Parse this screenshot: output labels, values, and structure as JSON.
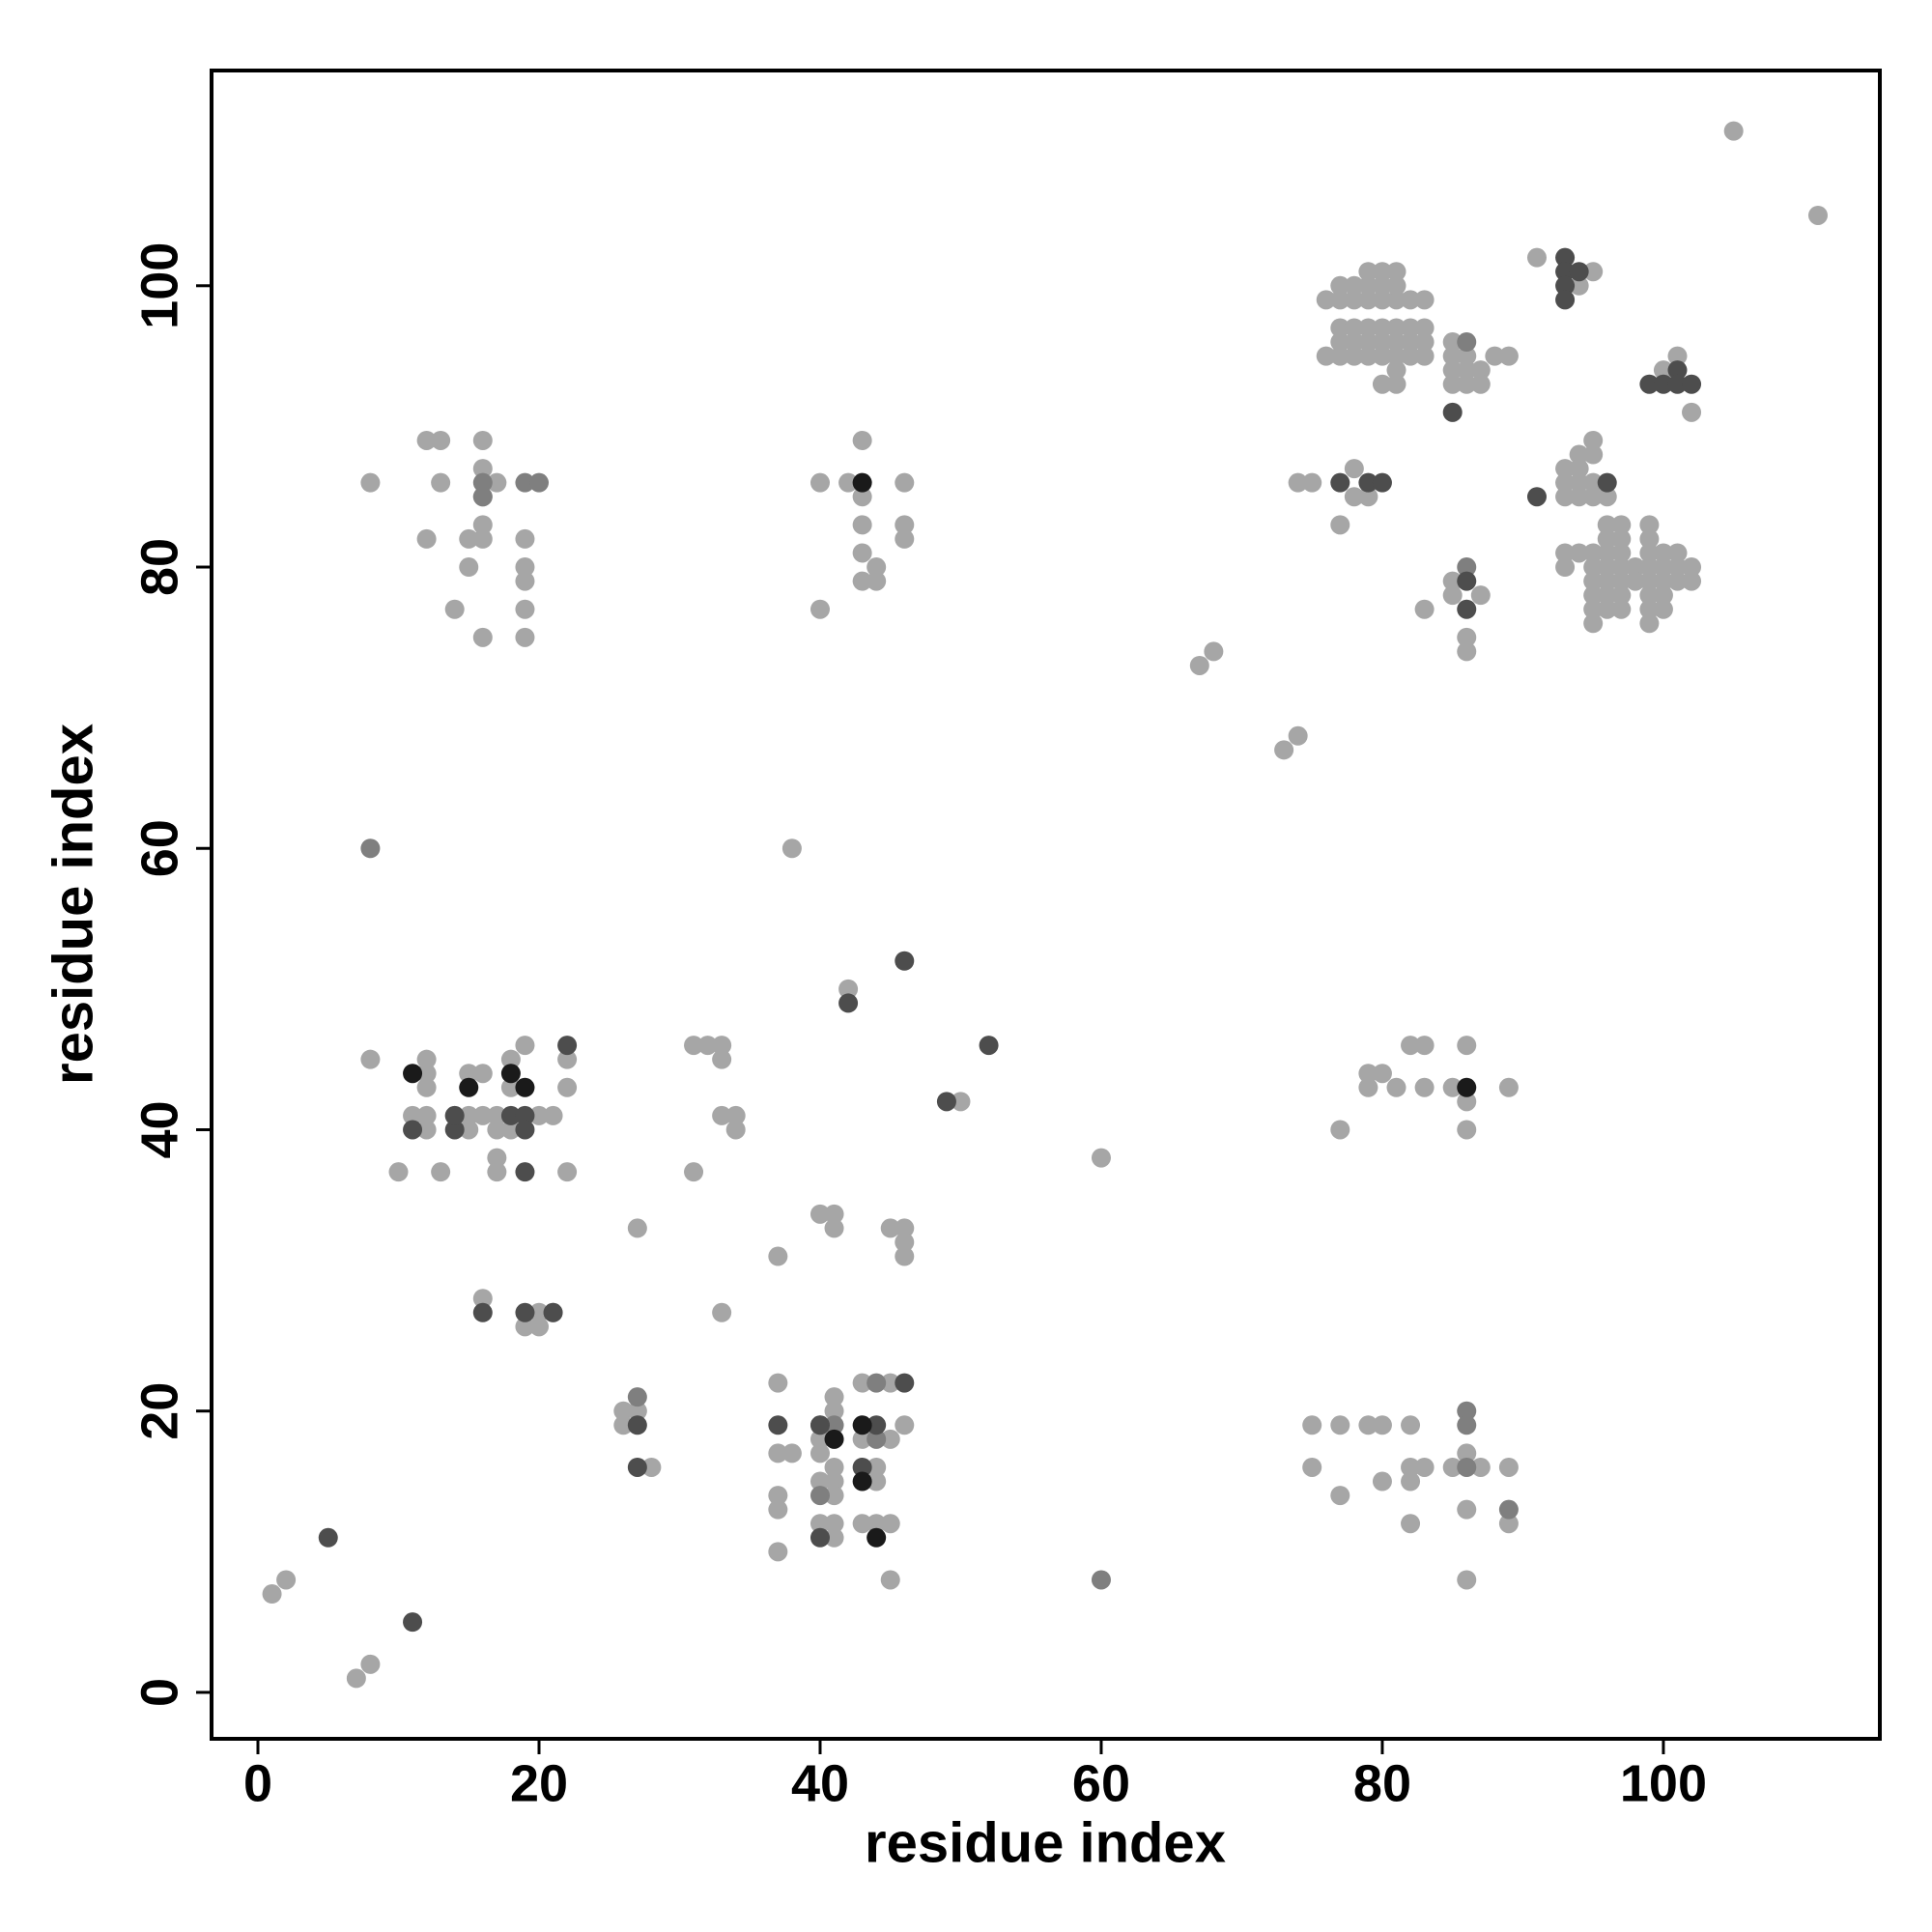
{
  "chart_data": {
    "type": "scatter",
    "xlabel": "residue index",
    "ylabel": "residue index",
    "xlim": [
      -3.3,
      115.4
    ],
    "ylim": [
      -3.3,
      115.3
    ],
    "xticks": [
      0,
      20,
      40,
      60,
      80,
      100
    ],
    "yticks": [
      0,
      20,
      40,
      60,
      80,
      100
    ],
    "grid": false,
    "series": [
      {
        "color": "#a6a6a6",
        "x": [
          1,
          2,
          7,
          8,
          67,
          68,
          73,
          74,
          105,
          111,
          37,
          37,
          38,
          37,
          37,
          37,
          40,
          40,
          40,
          41,
          41,
          41,
          41,
          41,
          41,
          40,
          41,
          43,
          43,
          43,
          44,
          44,
          44,
          45,
          45,
          45,
          46,
          45,
          26,
          26,
          27,
          28,
          27,
          33,
          37,
          31,
          40,
          41,
          41,
          45,
          46,
          46,
          46,
          31,
          32,
          33,
          33,
          33,
          34,
          34,
          38,
          60,
          42,
          50,
          8,
          10,
          11,
          12,
          12,
          12,
          12,
          12,
          13,
          14,
          15,
          15,
          15,
          16,
          16,
          17,
          17,
          17,
          17,
          18,
          18,
          18,
          19,
          20,
          21,
          22,
          22,
          22,
          16,
          19,
          20,
          20,
          8,
          12,
          13,
          13,
          12,
          15,
          15,
          14,
          16,
          16,
          16,
          16,
          16,
          17,
          16,
          19,
          19,
          19,
          19,
          19,
          40,
          40,
          42,
          43,
          43,
          43,
          43,
          43,
          44,
          44,
          46,
          46,
          46,
          75,
          75,
          77,
          77,
          79,
          80,
          80,
          82,
          82,
          82,
          82,
          83,
          85,
          86,
          86,
          86,
          87,
          89,
          89,
          77,
          79,
          79,
          80,
          81,
          82,
          83,
          83,
          85,
          86,
          86,
          86,
          89,
          74,
          75,
          77,
          78,
          78,
          79,
          76,
          77,
          78,
          79,
          80,
          81,
          82,
          83,
          77,
          78,
          79,
          80,
          81,
          79,
          80,
          81,
          77,
          78,
          79,
          80,
          81,
          82,
          83,
          77,
          78,
          79,
          80,
          81,
          82,
          83,
          76,
          77,
          78,
          79,
          80,
          81,
          82,
          83,
          81,
          80,
          81,
          85,
          85,
          85,
          85,
          86,
          86,
          86,
          87,
          87,
          88,
          89,
          85,
          85,
          87,
          86,
          86,
          83,
          91,
          94,
          95,
          100,
          101,
          102,
          93,
          93,
          93,
          94,
          94,
          94,
          94,
          95,
          95,
          95,
          95,
          96,
          93,
          93,
          94,
          95,
          95,
          95,
          95,
          95,
          95,
          96,
          96,
          96,
          96,
          96,
          96,
          96,
          97,
          97,
          97,
          97,
          97,
          97,
          97,
          98,
          98,
          99,
          99,
          99,
          99,
          99,
          99,
          99,
          99,
          100,
          100,
          100,
          100,
          100,
          101,
          101,
          101,
          102,
          102
        ],
        "y": [
          7,
          8,
          1,
          2,
          73,
          74,
          67,
          68,
          111,
          105,
          22,
          17,
          17,
          14,
          13,
          10,
          18,
          17,
          15,
          21,
          20,
          16,
          15,
          14,
          12,
          12,
          11,
          22,
          18,
          12,
          16,
          15,
          12,
          12,
          18,
          22,
          19,
          8,
          20,
          19,
          20,
          16,
          33,
          27,
          31,
          37,
          34,
          34,
          33,
          33,
          33,
          32,
          31,
          46,
          46,
          46,
          45,
          41,
          41,
          40,
          60,
          38,
          50,
          42,
          45,
          37,
          41,
          45,
          44,
          43,
          41,
          40,
          37,
          41,
          44,
          41,
          40,
          44,
          41,
          41,
          40,
          38,
          37,
          45,
          43,
          40,
          46,
          41,
          41,
          45,
          43,
          37,
          28,
          26,
          26,
          27,
          86,
          89,
          89,
          86,
          82,
          82,
          80,
          77,
          89,
          87,
          85,
          83,
          82,
          86,
          75,
          82,
          80,
          79,
          77,
          75,
          86,
          77,
          86,
          89,
          85,
          83,
          81,
          79,
          80,
          79,
          86,
          83,
          82,
          19,
          16,
          19,
          14,
          19,
          19,
          15,
          19,
          16,
          15,
          12,
          16,
          16,
          17,
          13,
          8,
          16,
          16,
          12,
          40,
          44,
          43,
          44,
          43,
          46,
          46,
          43,
          43,
          46,
          42,
          40,
          43,
          86,
          86,
          83,
          87,
          85,
          85,
          99,
          99,
          99,
          99,
          99,
          99,
          99,
          99,
          100,
          100,
          100,
          100,
          100,
          101,
          101,
          101,
          97,
          97,
          97,
          97,
          97,
          97,
          97,
          96,
          96,
          96,
          96,
          96,
          96,
          96,
          95,
          95,
          95,
          95,
          95,
          95,
          95,
          95,
          94,
          93,
          93,
          96,
          95,
          94,
          93,
          95,
          94,
          93,
          94,
          93,
          95,
          95,
          79,
          78,
          78,
          75,
          74,
          77,
          102,
          100,
          101,
          94,
          95,
          91,
          87,
          86,
          85,
          88,
          87,
          86,
          85,
          89,
          88,
          86,
          85,
          85,
          81,
          80,
          81,
          81,
          80,
          79,
          78,
          77,
          76,
          83,
          82,
          81,
          80,
          79,
          78,
          77,
          83,
          82,
          81,
          80,
          79,
          78,
          77,
          80,
          79,
          83,
          82,
          81,
          80,
          79,
          78,
          77,
          76,
          81,
          80,
          79,
          78,
          77,
          81,
          80,
          79,
          80,
          79
        ]
      },
      {
        "color": "#7f7f7f",
        "x": [
          8,
          60,
          16,
          19,
          20,
          27,
          21,
          40,
          41,
          86,
          86,
          86,
          89,
          86,
          44,
          44,
          40,
          16,
          86
        ],
        "y": [
          60,
          8,
          86,
          86,
          86,
          21,
          27,
          19,
          19,
          20,
          19,
          16,
          13,
          96,
          22,
          18,
          14,
          85,
          80
        ]
      },
      {
        "color": "#4d4d4d",
        "x": [
          5,
          11,
          11,
          14,
          14,
          18,
          19,
          19,
          19,
          16,
          19,
          21,
          22,
          27,
          37,
          40,
          40,
          43,
          44,
          46,
          42,
          46,
          49,
          52,
          77,
          79,
          80,
          85,
          86,
          86,
          91,
          93,
          93,
          93,
          93,
          94,
          99,
          100,
          101,
          101,
          102,
          96,
          27
        ],
        "y": [
          11,
          5,
          40,
          40,
          41,
          41,
          41,
          40,
          37,
          27,
          27,
          27,
          46,
          19,
          19,
          11,
          19,
          16,
          19,
          22,
          49,
          52,
          42,
          46,
          86,
          86,
          86,
          91,
          77,
          79,
          85,
          102,
          101,
          100,
          99,
          101,
          93,
          93,
          94,
          93,
          93,
          86,
          16
        ]
      },
      {
        "color": "#1a1a1a",
        "x": [
          11,
          15,
          18,
          19,
          43,
          43,
          43,
          41,
          44,
          86
        ],
        "y": [
          44,
          43,
          44,
          43,
          86,
          19,
          15,
          18,
          11,
          43
        ]
      }
    ]
  }
}
